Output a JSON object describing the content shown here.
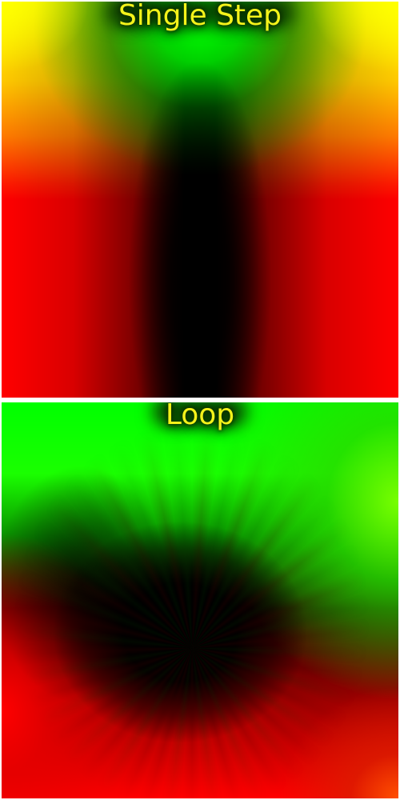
{
  "panels": {
    "single_step": {
      "title": "Single Step"
    },
    "loop": {
      "title": "Loop"
    }
  },
  "colors": {
    "title_text": "#f4f31a",
    "title_glow": "#0d2e00",
    "separator": "#ffffff",
    "red": "#ff0000",
    "green": "#00ff00",
    "yellow": "#ffff00",
    "black": "#000000"
  }
}
